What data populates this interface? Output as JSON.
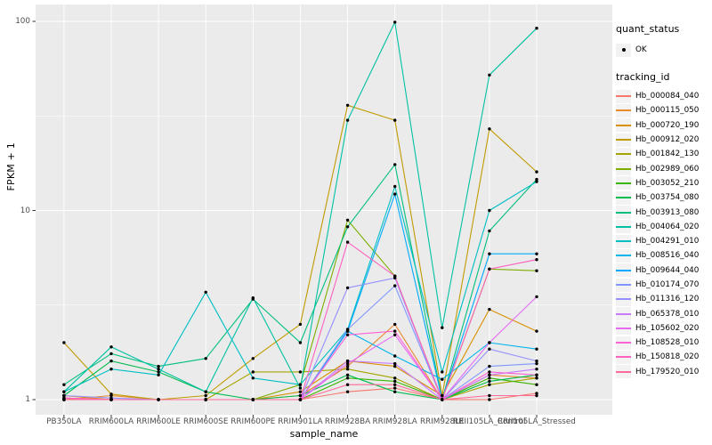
{
  "legend": {
    "quant_status_title": "quant_status",
    "quant_status_items": [
      {
        "label": "OK",
        "marker": "black-point"
      }
    ],
    "tracking_title": "tracking_id"
  },
  "colors": {
    "panel_background": "#EBEBEB",
    "grid_major": "#FFFFFF",
    "grid_minor": "#F7F7F7",
    "axis_tick": "#333333",
    "tick_text": "#4D4D4D",
    "point": "#000000",
    "legend_key_background": "#F2F2F2"
  },
  "chart_data": {
    "type": "line",
    "title": "",
    "xlabel": "sample_name",
    "ylabel": "FPKM + 1",
    "y_scale": "log10",
    "y_ticks": [
      1,
      10,
      100
    ],
    "ylim": [
      0.85,
      130
    ],
    "grid": true,
    "legend_position": "right",
    "point_marker": "black filled circle (quant_status OK)",
    "categories": [
      "PB350LA",
      "RRIM600LA",
      "RRIM600LE",
      "RRIM600SE",
      "RRIM600PE",
      "RRIM901LA",
      "RRIM928BA",
      "RRIM928LA",
      "RRIM928LE",
      "RRII105LA_Control",
      "RRII105LA_Stressed"
    ],
    "series": [
      {
        "name": "Hb_000084_040",
        "color": "#F8766D",
        "values": [
          1.0,
          1.0,
          1.0,
          1.0,
          1.0,
          1.0,
          1.1,
          1.15,
          1.0,
          1.0,
          1.08
        ]
      },
      {
        "name": "Hb_000115_050",
        "color": "#E98A2B",
        "values": [
          1.0,
          1.05,
          1.0,
          1.0,
          1.0,
          1.05,
          1.5,
          2.5,
          1.0,
          1.35,
          1.3
        ]
      },
      {
        "name": "Hb_000720_190",
        "color": "#D89000",
        "values": [
          1.05,
          1.0,
          1.0,
          1.0,
          1.0,
          1.1,
          1.6,
          1.5,
          1.05,
          3.0,
          2.3
        ]
      },
      {
        "name": "Hb_000912_020",
        "color": "#C09B00",
        "values": [
          2.0,
          1.07,
          1.0,
          1.05,
          1.65,
          2.5,
          36.0,
          30.0,
          1.05,
          27.0,
          16.0
        ]
      },
      {
        "name": "Hb_001842_130",
        "color": "#A3A500",
        "values": [
          1.0,
          1.0,
          1.0,
          1.0,
          1.4,
          1.4,
          1.45,
          1.3,
          1.0,
          1.2,
          1.3
        ]
      },
      {
        "name": "Hb_002989_060",
        "color": "#7CAE00",
        "values": [
          1.0,
          1.0,
          1.0,
          1.0,
          1.0,
          1.2,
          8.9,
          4.5,
          1.0,
          4.9,
          4.8
        ]
      },
      {
        "name": "Hb_003052_210",
        "color": "#39B600",
        "values": [
          1.0,
          1.0,
          1.0,
          1.0,
          1.0,
          1.0,
          1.3,
          1.25,
          1.0,
          1.3,
          1.2
        ]
      },
      {
        "name": "Hb_003754_080",
        "color": "#00BB4E",
        "values": [
          1.05,
          1.6,
          1.4,
          1.1,
          1.0,
          1.05,
          1.35,
          1.1,
          1.0,
          1.25,
          1.35
        ]
      },
      {
        "name": "Hb_003913_080",
        "color": "#00BF7D",
        "values": [
          1.2,
          1.75,
          1.5,
          1.65,
          3.4,
          2.0,
          8.2,
          17.5,
          1.0,
          7.8,
          14.6
        ]
      },
      {
        "name": "Hb_004064_020",
        "color": "#00C1A3",
        "values": [
          1.1,
          1.9,
          1.45,
          1.1,
          3.45,
          1.15,
          30.0,
          99.0,
          2.4,
          52.0,
          92.0
        ]
      },
      {
        "name": "Hb_004291_010",
        "color": "#00BFC4",
        "values": [
          1.1,
          1.45,
          1.35,
          3.7,
          1.3,
          1.2,
          2.35,
          13.4,
          1.4,
          10.0,
          14.2
        ]
      },
      {
        "name": "Hb_008516_040",
        "color": "#00B5EC",
        "values": [
          1.0,
          1.0,
          1.0,
          1.0,
          1.0,
          1.0,
          2.3,
          1.7,
          1.28,
          2.0,
          1.85
        ]
      },
      {
        "name": "Hb_009644_040",
        "color": "#00A9FF",
        "values": [
          1.0,
          1.0,
          1.0,
          1.0,
          1.0,
          1.0,
          2.3,
          12.2,
          1.0,
          5.9,
          5.9
        ]
      },
      {
        "name": "Hb_010174_070",
        "color": "#7F96FF",
        "values": [
          1.0,
          1.0,
          1.0,
          1.0,
          1.0,
          1.0,
          2.35,
          4.0,
          1.0,
          1.5,
          1.55
        ]
      },
      {
        "name": "Hb_011316_120",
        "color": "#9590FF",
        "values": [
          1.05,
          1.02,
          1.0,
          1.0,
          1.0,
          1.0,
          3.9,
          4.4,
          1.0,
          1.85,
          1.6
        ]
      },
      {
        "name": "Hb_065378_010",
        "color": "#C77CFF",
        "values": [
          1.0,
          1.0,
          1.0,
          1.0,
          1.0,
          1.0,
          1.6,
          1.55,
          1.0,
          1.35,
          1.45
        ]
      },
      {
        "name": "Hb_105602_020",
        "color": "#E76BF3",
        "values": [
          1.0,
          1.0,
          1.0,
          1.0,
          1.0,
          1.0,
          1.55,
          2.2,
          1.0,
          2.0,
          3.5
        ]
      },
      {
        "name": "Hb_108528_010",
        "color": "#FC61D5",
        "values": [
          1.02,
          1.0,
          1.0,
          1.0,
          1.0,
          1.0,
          2.2,
          2.3,
          1.0,
          1.4,
          1.35
        ]
      },
      {
        "name": "Hb_150818_020",
        "color": "#FF61BF",
        "values": [
          1.02,
          1.0,
          1.0,
          1.0,
          1.0,
          1.0,
          6.8,
          4.5,
          1.0,
          4.9,
          5.5
        ]
      },
      {
        "name": "Hb_179520_010",
        "color": "#FF6A98",
        "values": [
          1.0,
          1.0,
          1.0,
          1.0,
          1.0,
          1.0,
          1.2,
          1.2,
          1.0,
          1.05,
          1.05
        ]
      }
    ]
  }
}
